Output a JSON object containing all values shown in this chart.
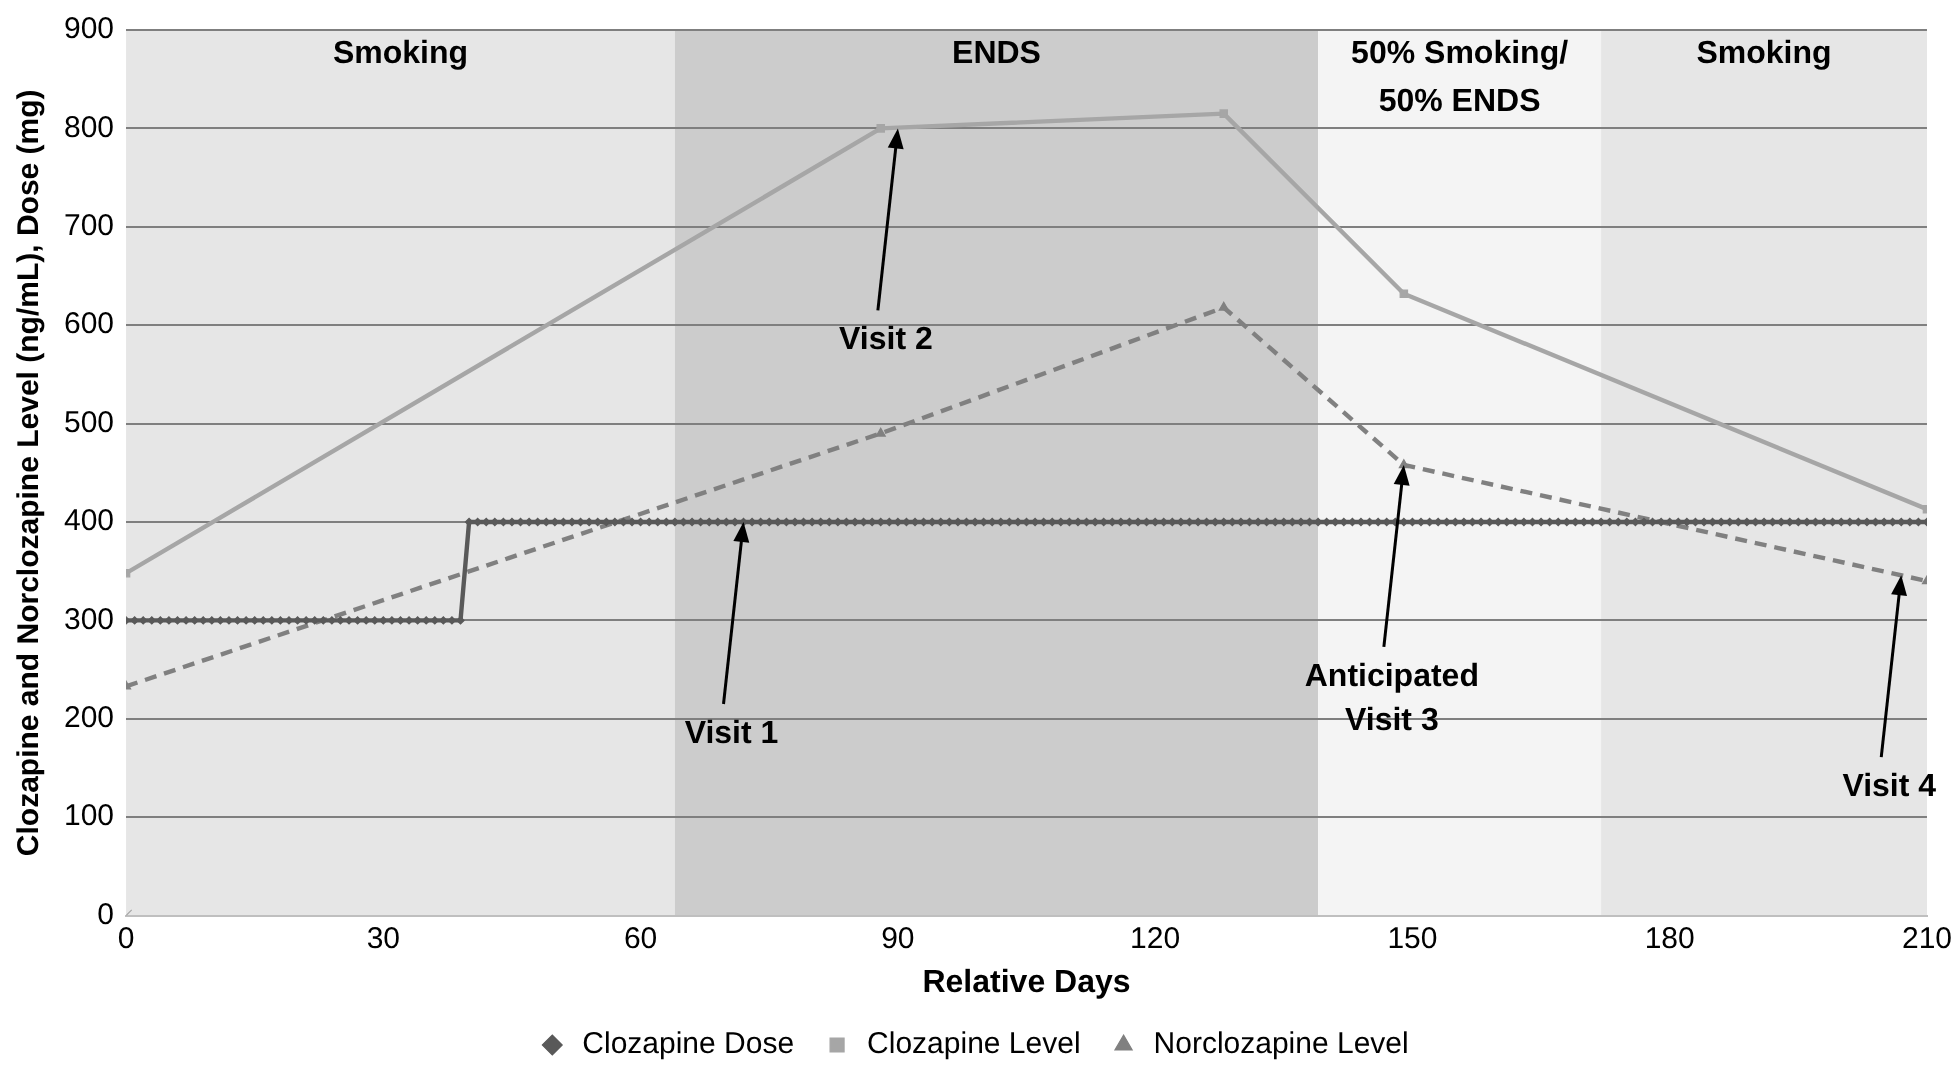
{
  "chart_data": {
    "type": "line",
    "xlabel": "Relative Days",
    "ylabel": "Clozapine and Norclozapine Level (ng/mL), Dose (mg)",
    "xlim": [
      0,
      210
    ],
    "xticks": [
      0,
      30,
      60,
      90,
      120,
      150,
      180,
      210
    ],
    "ylim": [
      0,
      900
    ],
    "yticks": [
      0,
      100,
      200,
      300,
      400,
      500,
      600,
      700,
      800,
      900
    ],
    "grid": "y",
    "legend": "bottom",
    "series": [
      {
        "name": "Clozapine Dose",
        "color": "#595959",
        "marker": "diamond",
        "line_style": "solid",
        "x": [
          0,
          1,
          2,
          3,
          4,
          5,
          6,
          7,
          8,
          9,
          10,
          11,
          12,
          13,
          14,
          15,
          16,
          17,
          18,
          19,
          20,
          21,
          22,
          23,
          24,
          25,
          26,
          27,
          28,
          29,
          30,
          31,
          32,
          33,
          34,
          35,
          36,
          37,
          38,
          39,
          40,
          41,
          42,
          43,
          44,
          45,
          46,
          47,
          48,
          49,
          50,
          51,
          52,
          53,
          54,
          55,
          56,
          57,
          58,
          59,
          60,
          61,
          62,
          63,
          64,
          65,
          66,
          67,
          68,
          69,
          70,
          71,
          72,
          73,
          74,
          75,
          76,
          77,
          78,
          79,
          80,
          81,
          82,
          83,
          84,
          85,
          86,
          87,
          88,
          89,
          90,
          91,
          92,
          93,
          94,
          95,
          96,
          97,
          98,
          99,
          100,
          101,
          102,
          103,
          104,
          105,
          106,
          107,
          108,
          109,
          110,
          111,
          112,
          113,
          114,
          115,
          116,
          117,
          118,
          119,
          120,
          121,
          122,
          123,
          124,
          125,
          126,
          127,
          128,
          129,
          130,
          131,
          132,
          133,
          134,
          135,
          136,
          137,
          138,
          139,
          140,
          141,
          142,
          143,
          144,
          145,
          146,
          147,
          148,
          149,
          150,
          151,
          152,
          153,
          154,
          155,
          156,
          157,
          158,
          159,
          160,
          161,
          162,
          163,
          164,
          165,
          166,
          167,
          168,
          169,
          170,
          171,
          172,
          173,
          174,
          175,
          176,
          177,
          178,
          179,
          180,
          181,
          182,
          183,
          184,
          185,
          186,
          187,
          188,
          189,
          190,
          191,
          192,
          193,
          194,
          195,
          196,
          197,
          198,
          199,
          200,
          201,
          202,
          203,
          204,
          205,
          206,
          207,
          208,
          209,
          210
        ],
        "values": [
          300,
          300,
          300,
          300,
          300,
          300,
          300,
          300,
          300,
          300,
          300,
          300,
          300,
          300,
          300,
          300,
          300,
          300,
          300,
          300,
          300,
          300,
          300,
          300,
          300,
          300,
          300,
          300,
          300,
          300,
          300,
          300,
          300,
          300,
          300,
          300,
          300,
          300,
          300,
          300,
          400,
          400,
          400,
          400,
          400,
          400,
          400,
          400,
          400,
          400,
          400,
          400,
          400,
          400,
          400,
          400,
          400,
          400,
          400,
          400,
          400,
          400,
          400,
          400,
          400,
          400,
          400,
          400,
          400,
          400,
          400,
          400,
          400,
          400,
          400,
          400,
          400,
          400,
          400,
          400,
          400,
          400,
          400,
          400,
          400,
          400,
          400,
          400,
          400,
          400,
          400,
          400,
          400,
          400,
          400,
          400,
          400,
          400,
          400,
          400,
          400,
          400,
          400,
          400,
          400,
          400,
          400,
          400,
          400,
          400,
          400,
          400,
          400,
          400,
          400,
          400,
          400,
          400,
          400,
          400,
          400,
          400,
          400,
          400,
          400,
          400,
          400,
          400,
          400,
          400,
          400,
          400,
          400,
          400,
          400,
          400,
          400,
          400,
          400,
          400,
          400,
          400,
          400,
          400,
          400,
          400,
          400,
          400,
          400,
          400,
          400,
          400,
          400,
          400,
          400,
          400,
          400,
          400,
          400,
          400,
          400,
          400,
          400,
          400,
          400,
          400,
          400,
          400,
          400,
          400,
          400,
          400,
          400,
          400,
          400,
          400,
          400,
          400,
          400,
          400,
          400,
          400,
          400,
          400,
          400,
          400,
          400,
          400,
          400,
          400,
          400,
          400,
          400,
          400,
          400,
          400,
          400,
          400,
          400,
          400,
          400,
          400,
          400,
          400,
          400,
          400,
          400,
          400,
          400,
          400,
          400
        ]
      },
      {
        "name": "Clozapine Level",
        "color": "#a6a6a6",
        "marker": "square",
        "line_style": "solid",
        "x": [
          0,
          88,
          128,
          149,
          210
        ],
        "values": [
          348,
          800,
          815,
          632,
          413
        ]
      },
      {
        "name": "Norclozapine Level",
        "color": "#808080",
        "marker": "triangle",
        "line_style": "dashed",
        "x": [
          0,
          88,
          128,
          149,
          210
        ],
        "values": [
          233,
          490,
          618,
          458,
          340
        ]
      },
      {
        "type": "scatter",
        "color": "#a6a6a6",
        "marker": "cross",
        "x": [
          0
        ],
        "values": [
          0
        ]
      }
    ],
    "bands": [
      {
        "axis": "x",
        "from": 0,
        "to": 64,
        "label": "Smoking",
        "color": "#e6e6e6"
      },
      {
        "axis": "x",
        "from": 64,
        "to": 139,
        "label": "ENDS",
        "color": "#cccccc"
      },
      {
        "axis": "x",
        "from": 139,
        "to": 172,
        "label": "50% Smoking/\n50% ENDS",
        "color": "#f4f4f4"
      },
      {
        "axis": "x",
        "from": 172,
        "to": 210,
        "label": "Smoking",
        "color": "#e6e6e6"
      }
    ],
    "annotations": [
      {
        "text": "Visit 1",
        "x": 72,
        "y": 400
      },
      {
        "text": "Visit 2",
        "x": 90,
        "y": 800
      },
      {
        "text": "Anticipated\nVisit 3",
        "x": 149,
        "y": 458
      },
      {
        "text": "Visit 4",
        "x": 207,
        "y": 346
      }
    ]
  }
}
